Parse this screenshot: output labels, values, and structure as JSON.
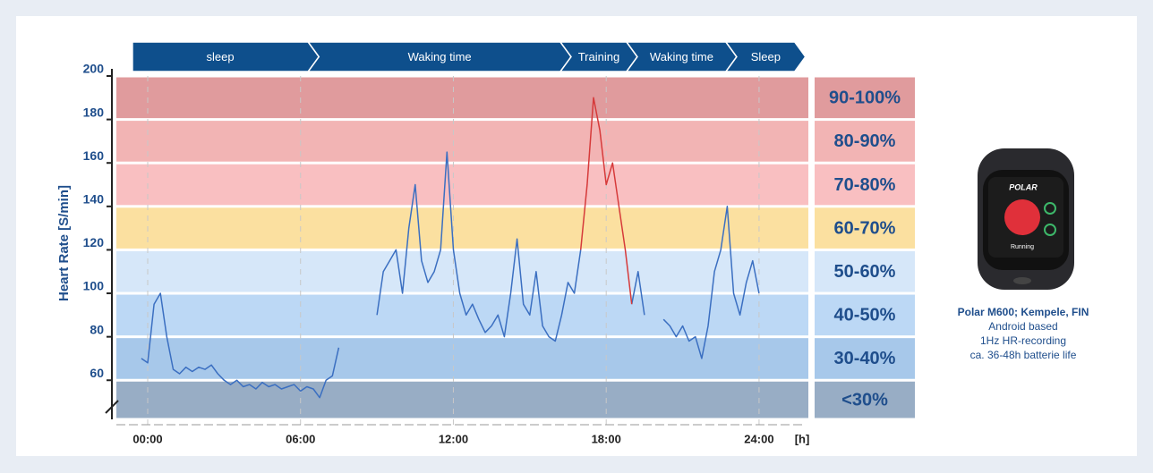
{
  "chart_data": {
    "type": "line",
    "y_label": "Heart Rate [S/min]",
    "x_unit": "[h]",
    "xlim": [
      -1.23,
      25.83
    ],
    "xticks": [
      {
        "value": 0,
        "label": "00:00"
      },
      {
        "value": 6,
        "label": "06:00"
      },
      {
        "value": 12,
        "label": "12:00"
      },
      {
        "value": 18,
        "label": "18:00"
      },
      {
        "value": 24,
        "label": "24:00"
      }
    ],
    "ylim": [
      42,
      200
    ],
    "yticks": [
      60,
      80,
      100,
      120,
      140,
      160,
      180,
      200
    ],
    "axis_break": true,
    "phases": [
      {
        "label": "sleep",
        "start": -0.6,
        "end": 6.3
      },
      {
        "label": "Waking time",
        "start": 6.3,
        "end": 16.2
      },
      {
        "label": "Training",
        "start": 16.2,
        "end": 18.8
      },
      {
        "label": "Waking time",
        "start": 18.8,
        "end": 22.7
      },
      {
        "label": "Sleep",
        "start": 22.7,
        "end": 25.4
      }
    ],
    "zones": [
      {
        "label": "90-100%",
        "min": 180,
        "max": 200,
        "color": "#e09b9d"
      },
      {
        "label": "80-90%",
        "min": 160,
        "max": 180,
        "color": "#f2b4b4"
      },
      {
        "label": "70-80%",
        "min": 140,
        "max": 160,
        "color": "#f9bfc1"
      },
      {
        "label": "60-70%",
        "min": 120,
        "max": 140,
        "color": "#fbe0a0"
      },
      {
        "label": "50-60%",
        "min": 100,
        "max": 120,
        "color": "#d6e7f9"
      },
      {
        "label": "40-50%",
        "min": 80,
        "max": 100,
        "color": "#bcd8f5"
      },
      {
        "label": "30-40%",
        "min": 60,
        "max": 80,
        "color": "#a7c8ea"
      },
      {
        "label": "<30%",
        "min": null,
        "max": 60,
        "color": "#98adc5"
      }
    ],
    "series": [
      {
        "color": "#3b6fc1",
        "x": [
          -0.25,
          0,
          0.25,
          0.5,
          0.75,
          1,
          1.25,
          1.5,
          1.75,
          2,
          2.25,
          2.5,
          2.75,
          3,
          3.25,
          3.5,
          3.75,
          4,
          4.25,
          4.5,
          4.75,
          5,
          5.25,
          5.5,
          5.75,
          6,
          6.25,
          6.5,
          6.75,
          7,
          7.25,
          7.5,
          7.75,
          8,
          8.25,
          8.5,
          8.75,
          9,
          9.25,
          9.5,
          9.75,
          10,
          10.25,
          10.5,
          10.75,
          11,
          11.25,
          11.5,
          11.75,
          12,
          12.25,
          12.5,
          12.75,
          13,
          13.25,
          13.5,
          13.75,
          14,
          14.25,
          14.5,
          14.75,
          15,
          15.25,
          15.5,
          15.75,
          16,
          16.25,
          16.5,
          16.75,
          17,
          17.25,
          17.5,
          17.75,
          18,
          18.25,
          18.5,
          18.75,
          19,
          19.25,
          19.5,
          19.75,
          20,
          20.25,
          20.5,
          20.75,
          21,
          21.25,
          21.5,
          21.75,
          22,
          22.25,
          22.5,
          22.75,
          23,
          23.25,
          23.5,
          23.75,
          24
        ],
        "values": [
          70,
          68,
          95,
          100,
          80,
          65,
          63,
          66,
          64,
          66,
          65,
          67,
          63,
          60,
          58,
          60,
          57,
          58,
          56,
          59,
          57,
          58,
          56,
          57,
          58,
          55,
          57,
          56,
          52,
          60,
          62,
          75,
          null,
          null,
          null,
          null,
          null,
          90,
          110,
          115,
          120,
          100,
          130,
          150,
          115,
          105,
          110,
          120,
          165,
          120,
          100,
          90,
          95,
          88,
          82,
          85,
          90,
          80,
          100,
          125,
          95,
          90,
          110,
          85,
          80,
          78,
          90,
          105,
          100,
          120,
          null,
          null,
          null,
          null,
          null,
          null,
          null,
          95,
          110,
          90,
          null,
          null,
          88,
          85,
          80,
          85,
          78,
          80,
          70,
          85,
          110,
          120,
          140,
          100,
          90,
          105,
          115,
          100
        ]
      },
      {
        "color": "#d63a3a",
        "x": [
          17,
          17.25,
          17.5,
          17.75,
          18,
          18.25,
          18.5,
          18.75,
          19
        ],
        "values": [
          120,
          150,
          190,
          175,
          150,
          160,
          140,
          120,
          95
        ]
      }
    ]
  },
  "device": {
    "brand": "POLAR",
    "screen": "Running",
    "caption": [
      "Polar M600; Kempele, FIN",
      "Android based",
      "1Hz HR-recording",
      "ca. 36-48h batterie life"
    ]
  }
}
